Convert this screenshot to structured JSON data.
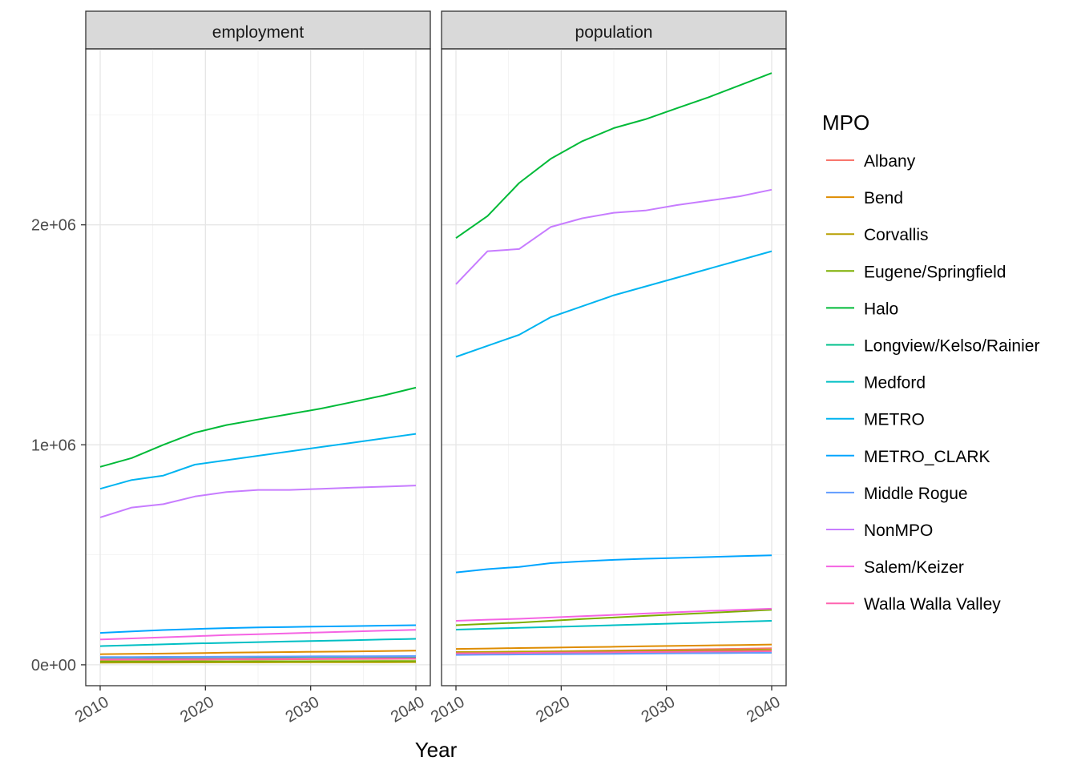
{
  "chart_data": {
    "type": "line",
    "xlabel": "Year",
    "legend_title": "MPO",
    "legend_position": "right",
    "grid": true,
    "x": [
      2010,
      2013,
      2016,
      2019,
      2022,
      2025,
      2028,
      2031,
      2034,
      2037,
      2040
    ],
    "x_ticks": [
      2010,
      2020,
      2030,
      2040
    ],
    "x_tick_labels": [
      "2010",
      "2020",
      "2030",
      "2040"
    ],
    "xlim": [
      2010,
      2040
    ],
    "y_ticks": [
      0,
      1000000,
      2000000
    ],
    "y_tick_labels": [
      "0e+00",
      "1e+06",
      "2e+06"
    ],
    "ylim": [
      -95000,
      2800000
    ],
    "colors": {
      "Albany": "#F8766D",
      "Bend": "#DE8C00",
      "Corvallis": "#B79F00",
      "Eugene/Springfield": "#7CAE00",
      "Halo": "#00BA38",
      "Longview/Kelso/Rainier": "#00C08B",
      "Medford": "#00BFC4",
      "METRO": "#00B4F0",
      "METRO_CLARK": "#00A5FF",
      "Middle Rogue": "#619CFF",
      "NonMPO": "#C77CFF",
      "Salem/Keizer": "#F564E3",
      "Walla Walla Valley": "#FF64B0"
    },
    "facets": [
      {
        "label": "employment",
        "series": [
          {
            "name": "Albany",
            "values": [
              22000,
              22500,
              23000,
              23500,
              24000,
              24500,
              25000,
              25500,
              26000,
              26500,
              27000
            ]
          },
          {
            "name": "Bend",
            "values": [
              48000,
              49500,
              51000,
              53000,
              55000,
              56500,
              58000,
              59500,
              61000,
              62500,
              64000
            ]
          },
          {
            "name": "Corvallis",
            "values": [
              10000,
              10200,
              10400,
              10600,
              10800,
              11000,
              11200,
              11400,
              11600,
              11800,
              12000
            ]
          },
          {
            "name": "Eugene/Springfield",
            "values": [
              15000,
              15200,
              15400,
              15600,
              15800,
              16000,
              16200,
              16400,
              16600,
              16800,
              17000
            ]
          },
          {
            "name": "Halo",
            "values": [
              900000,
              940000,
              1000000,
              1055000,
              1090000,
              1115000,
              1140000,
              1165000,
              1195000,
              1225000,
              1260000
            ]
          },
          {
            "name": "Longview/Kelso/Rainier",
            "values": [
              28000,
              28500,
              29000,
              29500,
              30000,
              30500,
              31000,
              31500,
              32000,
              32500,
              33000
            ]
          },
          {
            "name": "Medford",
            "values": [
              85000,
              89000,
              93000,
              97000,
              100000,
              103000,
              106000,
              109000,
              112000,
              115000,
              118000
            ]
          },
          {
            "name": "METRO",
            "values": [
              800000,
              840000,
              860000,
              910000,
              930000,
              950000,
              970000,
              990000,
              1010000,
              1030000,
              1050000
            ]
          },
          {
            "name": "METRO_CLARK",
            "values": [
              145000,
              152000,
              158000,
              163000,
              167000,
              170000,
              172000,
              174000,
              176000,
              178000,
              180000
            ]
          },
          {
            "name": "Middle Rogue",
            "values": [
              35000,
              35500,
              36000,
              36500,
              37000,
              37500,
              38000,
              38500,
              39000,
              39500,
              40000
            ]
          },
          {
            "name": "NonMPO",
            "values": [
              670000,
              715000,
              730000,
              765000,
              785000,
              795000,
              795000,
              800000,
              805000,
              810000,
              815000
            ]
          },
          {
            "name": "Salem/Keizer",
            "values": [
              115000,
              120000,
              125000,
              130000,
              135000,
              139000,
              143000,
              147000,
              151000,
              155000,
              159000
            ]
          },
          {
            "name": "Walla Walla Valley",
            "values": [
              25000,
              25500,
              26000,
              26500,
              27000,
              27500,
              28000,
              28500,
              29000,
              29500,
              30000
            ]
          }
        ]
      },
      {
        "label": "population",
        "series": [
          {
            "name": "Albany",
            "values": [
              55000,
              57000,
              59000,
              61000,
              63000,
              65000,
              67000,
              69000,
              71000,
              73000,
              75000
            ]
          },
          {
            "name": "Bend",
            "values": [
              72000,
              74000,
              76000,
              78000,
              80000,
              82000,
              84000,
              86000,
              88000,
              90000,
              92000
            ]
          },
          {
            "name": "Corvallis",
            "values": [
              58000,
              59000,
              60000,
              61000,
              62000,
              63000,
              64000,
              65000,
              66000,
              67000,
              68000
            ]
          },
          {
            "name": "Eugene/Springfield",
            "values": [
              180000,
              186000,
              192000,
              200000,
              208000,
              215000,
              222000,
              229000,
              236000,
              243000,
              250000
            ]
          },
          {
            "name": "Halo",
            "values": [
              1940000,
              2040000,
              2190000,
              2300000,
              2380000,
              2440000,
              2480000,
              2530000,
              2580000,
              2635000,
              2690000
            ]
          },
          {
            "name": "Longview/Kelso/Rainier",
            "values": [
              48000,
              48700,
              49400,
              50100,
              50800,
              51500,
              52200,
              52900,
              53600,
              54300,
              55000
            ]
          },
          {
            "name": "Medford",
            "values": [
              160000,
              164000,
              168000,
              172000,
              176000,
              180000,
              184000,
              188000,
              192000,
              196000,
              200000
            ]
          },
          {
            "name": "METRO",
            "values": [
              1400000,
              1450000,
              1500000,
              1580000,
              1630000,
              1680000,
              1720000,
              1760000,
              1800000,
              1840000,
              1880000
            ]
          },
          {
            "name": "METRO_CLARK",
            "values": [
              420000,
              435000,
              445000,
              462000,
              470000,
              477000,
              482000,
              486000,
              490000,
              494000,
              498000
            ]
          },
          {
            "name": "Middle Rogue",
            "values": [
              45000,
              46000,
              47000,
              48000,
              49000,
              50000,
              51000,
              52000,
              53000,
              54000,
              55000
            ]
          },
          {
            "name": "NonMPO",
            "values": [
              1730000,
              1880000,
              1890000,
              1990000,
              2030000,
              2055000,
              2065000,
              2090000,
              2110000,
              2130000,
              2160000
            ]
          },
          {
            "name": "Salem/Keizer",
            "values": [
              200000,
              205000,
              209000,
              215000,
              221000,
              227000,
              233000,
              239000,
              245000,
              250000,
              255000
            ]
          },
          {
            "name": "Walla Walla Valley",
            "values": [
              52000,
              53000,
              54000,
              55000,
              56000,
              57000,
              58000,
              59000,
              60000,
              61000,
              62000
            ]
          }
        ]
      }
    ]
  }
}
